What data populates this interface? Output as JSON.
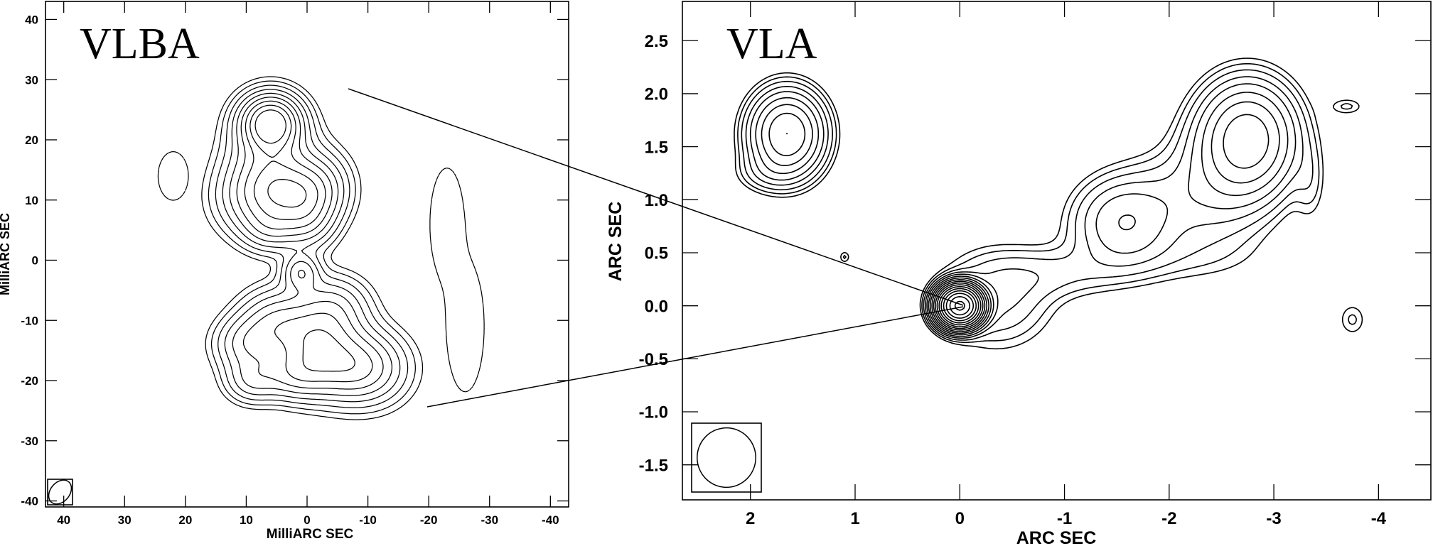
{
  "chart_data": [
    {
      "type": "contour",
      "title": "VLBA",
      "xlabel": "MilliARC SEC",
      "ylabel": "MilliARC SEC",
      "xlim": [
        43,
        -43
      ],
      "ylim": [
        -41,
        43
      ],
      "x_ticks": [
        40,
        30,
        20,
        10,
        0,
        -10,
        -20,
        -30,
        -40
      ],
      "x_tick_labels": [
        "40",
        "30",
        "20",
        "10",
        "0",
        "-10",
        "-20",
        "-30",
        "-40"
      ],
      "y_ticks": [
        40,
        30,
        20,
        10,
        0,
        -10,
        -20,
        -30,
        -40
      ],
      "y_tick_labels": [
        "40",
        "30",
        "20",
        "10",
        "0",
        "-10",
        "-20",
        "-30",
        "-40"
      ],
      "beam": {
        "x": 40,
        "y": -39,
        "major": 2.2,
        "minor": 1.6
      },
      "components": [
        {
          "x": 6,
          "y": 23,
          "sx": 3.2,
          "sy": 3.0,
          "peak": 10
        },
        {
          "x": 6,
          "y": 16,
          "sx": 4.5,
          "sy": 5.5,
          "peak": 5
        },
        {
          "x": 2,
          "y": 11,
          "sx": 3.8,
          "sy": 3.2,
          "peak": 4
        },
        {
          "x": 8,
          "y": 10,
          "sx": 4.5,
          "sy": 4.0,
          "peak": 4
        },
        {
          "x": -2,
          "y": 12,
          "sx": 3.5,
          "sy": 4.0,
          "peak": 3.5
        },
        {
          "x": 0,
          "y": 6,
          "sx": 3.0,
          "sy": 3.0,
          "peak": 3
        },
        {
          "x": 6,
          "y": 5,
          "sx": 3.0,
          "sy": 2.5,
          "peak": 2.5
        },
        {
          "x": 1,
          "y": -2,
          "sx": 2.0,
          "sy": 2.0,
          "peak": 4
        },
        {
          "x": 5,
          "y": -10,
          "sx": 4.0,
          "sy": 3.5,
          "peak": 4
        },
        {
          "x": -4,
          "y": -8,
          "sx": 4.0,
          "sy": 3.5,
          "peak": 4
        },
        {
          "x": -4,
          "y": -17,
          "sx": 5.0,
          "sy": 4.0,
          "peak": 5
        },
        {
          "x": 10,
          "y": -14,
          "sx": 3.5,
          "sy": 3.0,
          "peak": 3.5
        },
        {
          "x": -10,
          "y": -18,
          "sx": 4.5,
          "sy": 4.0,
          "peak": 4
        },
        {
          "x": 2,
          "y": -19,
          "sx": 3.5,
          "sy": 2.8,
          "peak": 3.5
        },
        {
          "x": 9,
          "y": -20,
          "sx": 3.0,
          "sy": 2.5,
          "peak": 3
        },
        {
          "x": -1,
          "y": -13,
          "sx": 4.0,
          "sy": 3.0,
          "peak": 3
        }
      ],
      "negative_components": [
        {
          "x": 22,
          "y": 14,
          "sx": 1.6,
          "sy": 2.6,
          "peak": 2
        },
        {
          "x": -23,
          "y": 6,
          "sx": 1.8,
          "sy": 6.0,
          "peak": 2
        },
        {
          "x": -26,
          "y": -11,
          "sx": 2.0,
          "sy": 7.0,
          "peak": 2
        }
      ],
      "contour_levels": [
        0.6,
        1.0,
        1.6,
        2.4,
        3.4,
        4.6,
        6.0,
        7.6,
        9.4
      ],
      "negative_levels": [
        0.6
      ]
    },
    {
      "type": "contour",
      "title": "VLA",
      "xlabel": "ARC SEC",
      "ylabel": "ARC SEC",
      "xlim": [
        2.65,
        -4.5
      ],
      "ylim": [
        -1.83,
        2.87
      ],
      "x_ticks": [
        2,
        1,
        0,
        -1,
        -2,
        -3,
        -4
      ],
      "x_tick_labels": [
        "2",
        "1",
        "0",
        "-1",
        "-2",
        "-3",
        "-4"
      ],
      "y_ticks": [
        2.5,
        2.0,
        1.5,
        1.0,
        0.5,
        0.0,
        -0.5,
        -1.0,
        -1.5
      ],
      "y_tick_labels": [
        "2.5",
        "2.0",
        "1.5",
        "1.0",
        "0.5",
        "0.0",
        "-0.5",
        "-1.0",
        "-1.5"
      ],
      "beam": {
        "x": 2.02,
        "y": -1.42,
        "major": 0.28,
        "minor": 0.28
      },
      "components": [
        {
          "x": 0,
          "y": 0,
          "sx": 0.11,
          "sy": 0.1,
          "peak": 200
        },
        {
          "x": -0.35,
          "y": 0.06,
          "sx": 0.35,
          "sy": 0.3,
          "peak": 3
        },
        {
          "x": -0.9,
          "y": 0.3,
          "sx": 0.45,
          "sy": 0.16,
          "peak": 1.6
        },
        {
          "x": -1.55,
          "y": 0.78,
          "sx": 0.3,
          "sy": 0.26,
          "peak": 5
        },
        {
          "x": -2.1,
          "y": 1.0,
          "sx": 0.45,
          "sy": 0.3,
          "peak": 2
        },
        {
          "x": -2.75,
          "y": 1.58,
          "sx": 0.28,
          "sy": 0.32,
          "peak": 14
        },
        {
          "x": -2.5,
          "y": 1.2,
          "sx": 0.35,
          "sy": 0.4,
          "peak": 2
        },
        {
          "x": -2.0,
          "y": 0.45,
          "sx": 0.6,
          "sy": 0.18,
          "peak": 1
        },
        {
          "x": 1.65,
          "y": 1.62,
          "sx": 0.21,
          "sy": 0.24,
          "peak": 16
        },
        {
          "x": 1.85,
          "y": 1.25,
          "sx": 0.2,
          "sy": 0.12,
          "peak": 1.5
        },
        {
          "x": -3.7,
          "y": 1.88,
          "sx": 0.12,
          "sy": 0.06,
          "peak": 1.4
        },
        {
          "x": -3.75,
          "y": -0.13,
          "sx": 0.1,
          "sy": 0.12,
          "peak": 1.4
        },
        {
          "x": 1.1,
          "y": 0.46,
          "sx": 0.04,
          "sy": 0.045,
          "peak": 1.4
        },
        {
          "x": -3.35,
          "y": 1.15,
          "sx": 0.1,
          "sy": 0.25,
          "peak": 1.2
        }
      ],
      "contour_levels": [
        0.9,
        1.3,
        1.9,
        2.8,
        4.0,
        5.8,
        8.2,
        11.5,
        16,
        22,
        30,
        41,
        56,
        76,
        103,
        140,
        185
      ],
      "negative_levels": []
    }
  ]
}
